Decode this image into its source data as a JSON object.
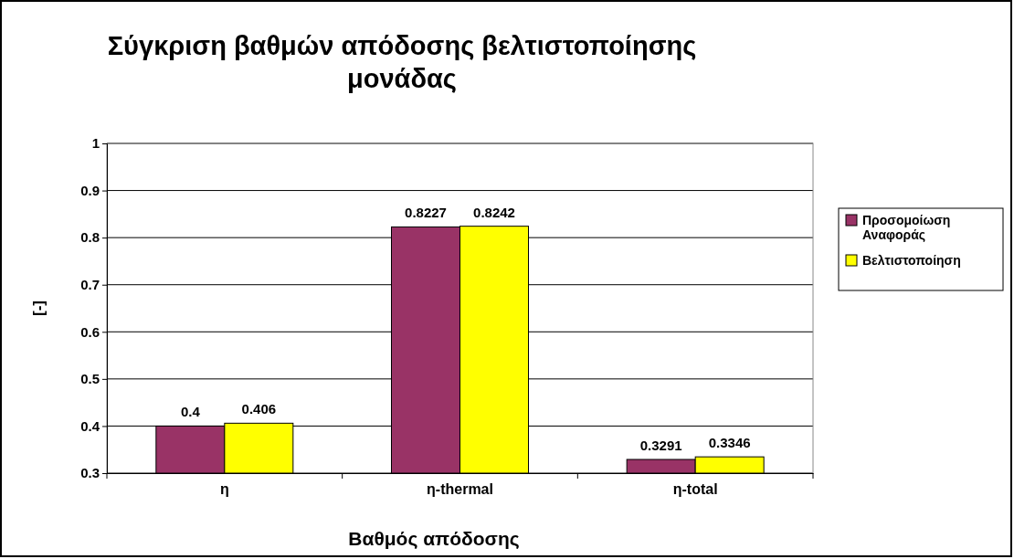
{
  "chart_data": {
    "type": "bar",
    "title": "Σύγκριση βαθμών απόδοσης βελτιστοποίησης μονάδας",
    "xlabel": "Βαθμός απόδοσης",
    "ylabel": "[-]",
    "categories": [
      "η",
      "η-thermal",
      "η-total"
    ],
    "series": [
      {
        "name": "Προσομοίωση Αναφοράς",
        "color": "#993366",
        "values": [
          0.4,
          0.8227,
          0.3291
        ]
      },
      {
        "name": "Βελτιστοποίηση",
        "color": "#ffff00",
        "values": [
          0.406,
          0.8242,
          0.3346
        ]
      }
    ],
    "ylim": [
      0.3,
      1
    ],
    "yticks": [
      0.3,
      0.4,
      0.5,
      0.6,
      0.7,
      0.8,
      0.9,
      1
    ],
    "grid": "y",
    "legend": "right",
    "data_labels": true
  }
}
